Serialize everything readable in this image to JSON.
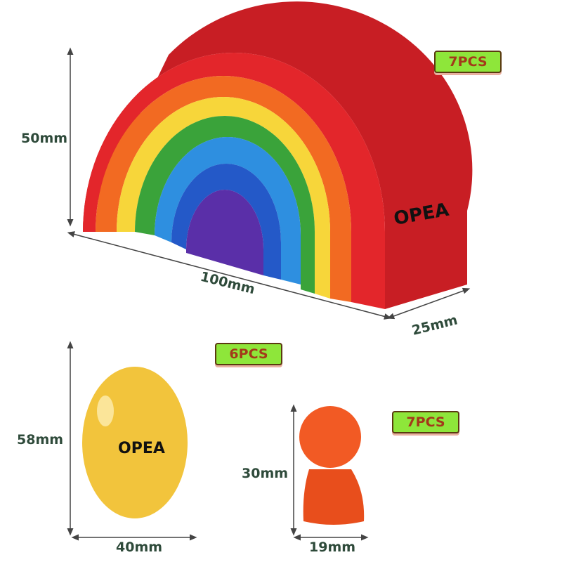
{
  "rainbow": {
    "height_label": "50mm",
    "length_label": "100mm",
    "depth_label": "25mm",
    "quantity": "7PCS"
  },
  "egg": {
    "height_label": "58mm",
    "width_label": "40mm",
    "quantity": "6PCS"
  },
  "peg": {
    "height_label": "30mm",
    "width_label": "19mm",
    "quantity": "7PCS"
  },
  "logo_text": "OPEA",
  "colors": {
    "red": "#e3262b",
    "orange": "#f26a22",
    "yellow": "#f7d63a",
    "green": "#3aa33a",
    "blue": "#2e8fe0",
    "dark_blue": "#2459c8",
    "purple": "#5a2fa8",
    "egg": "#f2c43c",
    "peg": "#f25a24",
    "badge": "#8ee63a",
    "dimension_text": "#2e4a3a"
  }
}
